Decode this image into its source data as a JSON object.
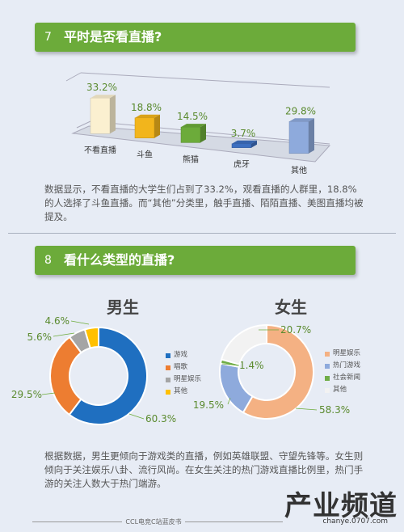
{
  "section7": {
    "number": "7",
    "title": "平时是否看直播?",
    "paragraph": "数据显示，不看直播的大学生们占到了33.2%，观看直播的人群里，18.8%的人选择了斗鱼直播。而“其他”分类里，触手直播、陌陌直播、美图直播均被提及。"
  },
  "section8": {
    "number": "8",
    "title": "看什么类型的直播?",
    "paragraph": "根据数据，男生更倾向于游戏类的直播，例如英雄联盟、守望先锋等。女生则倾向于关注娱乐八卦、流行风尚。在女生关注的热门游戏直播比例里，热门手游的关注人数大于热门端游。"
  },
  "footer": {
    "text": "CCL电竞C站蓝皮书"
  },
  "watermark": {
    "text": "产业频道",
    "sub": "chanye.0707.com"
  },
  "chart_data": [
    {
      "type": "bar",
      "categories": [
        "不看直播",
        "斗鱼",
        "熊猫",
        "虎牙",
        "其他"
      ],
      "values": [
        33.2,
        18.8,
        14.5,
        3.7,
        29.8
      ],
      "value_labels": [
        "33.2%",
        "18.8%",
        "14.5%",
        "3.7%",
        "29.8%"
      ],
      "colors": [
        "#fbf0d0",
        "#f2b51c",
        "#6cab3a",
        "#3d6fc0",
        "#8eaadc"
      ],
      "unit": "%"
    },
    {
      "type": "pie",
      "title": "男生",
      "labels": [
        "游戏",
        "唱歌",
        "明星娱乐",
        "其他"
      ],
      "values": [
        60.3,
        29.5,
        5.6,
        4.6
      ],
      "value_labels": [
        "60.3%",
        "29.5%",
        "5.6%",
        "4.6%"
      ],
      "colors": [
        "#1f6fc0",
        "#ed7d31",
        "#a5a5a5",
        "#ffc000"
      ],
      "legend_position": "right"
    },
    {
      "type": "pie",
      "title": "女生",
      "labels": [
        "明星娱乐",
        "热门游戏",
        "社会新闻",
        "其他"
      ],
      "values": [
        58.3,
        19.5,
        1.4,
        20.7
      ],
      "value_labels": [
        "58.3%",
        "19.5%",
        "1.4%",
        "20.7%"
      ],
      "colors": [
        "#f4b183",
        "#8eaadc",
        "#70ad47",
        "#f2f2f2"
      ],
      "legend_position": "right"
    }
  ]
}
